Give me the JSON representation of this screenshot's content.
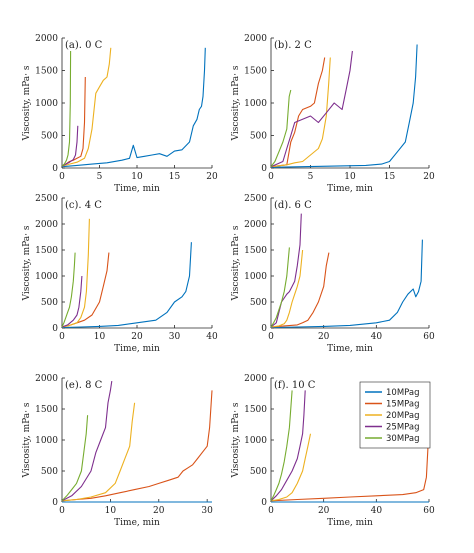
{
  "figure": {
    "legend": {
      "entries": [
        {
          "label": "10MPag",
          "color": "#0072BD"
        },
        {
          "label": "15MPag",
          "color": "#D95319"
        },
        {
          "label": "20MPag",
          "color": "#EDB120"
        },
        {
          "label": "25MPag",
          "color": "#7E2F8E"
        },
        {
          "label": "30MPag",
          "color": "#77AC30"
        }
      ]
    }
  },
  "chart_data": [
    {
      "type": "line",
      "title": "(a). 0 C",
      "xlabel": "Time, min",
      "ylabel": "Viscosity, mPa· s",
      "xlim": [
        0,
        20
      ],
      "ylim": [
        0,
        2000
      ],
      "xticks": [
        0,
        5,
        10,
        15,
        20
      ],
      "yticks": [
        0,
        500,
        1000,
        1500,
        2000
      ],
      "series": [
        {
          "name": "10MPag",
          "color": "#0072BD",
          "x": [
            0,
            2,
            4,
            6,
            8,
            9,
            9.5,
            10,
            11,
            12,
            13,
            14,
            15,
            16,
            17,
            17.5,
            18,
            18.3,
            18.6,
            18.8,
            19.0,
            19.1
          ],
          "y": [
            20,
            40,
            60,
            80,
            120,
            150,
            350,
            160,
            180,
            200,
            220,
            180,
            260,
            280,
            400,
            650,
            750,
            900,
            950,
            1100,
            1500,
            1850
          ]
        },
        {
          "name": "15MPag",
          "color": "#D95319",
          "x": [
            0,
            0.5,
            1,
            1.5,
            2,
            2.5,
            2.8,
            3.0,
            3.1
          ],
          "y": [
            30,
            60,
            100,
            120,
            150,
            180,
            300,
            700,
            1400
          ]
        },
        {
          "name": "20MPag",
          "color": "#EDB120",
          "x": [
            0,
            1,
            2,
            3,
            3.5,
            4,
            4.5,
            5,
            5.5,
            6,
            6.3,
            6.5
          ],
          "y": [
            30,
            60,
            90,
            150,
            300,
            600,
            1150,
            1250,
            1350,
            1400,
            1600,
            1850
          ]
        },
        {
          "name": "25MPag",
          "color": "#7E2F8E",
          "x": [
            0,
            0.5,
            1,
            1.5,
            1.8,
            2.0,
            2.1
          ],
          "y": [
            30,
            60,
            90,
            130,
            200,
            400,
            650
          ]
        },
        {
          "name": "30MPag",
          "color": "#77AC30",
          "x": [
            0,
            0.3,
            0.6,
            0.8,
            1.0,
            1.1,
            1.15
          ],
          "y": [
            30,
            60,
            120,
            200,
            400,
            1000,
            1800
          ]
        }
      ]
    },
    {
      "type": "line",
      "title": "(b). 2 C",
      "xlabel": "Time, min",
      "ylabel": "Viscosity, mPa· s",
      "xlim": [
        0,
        20
      ],
      "ylim": [
        0,
        2000
      ],
      "xticks": [
        0,
        5,
        10,
        15,
        20
      ],
      "yticks": [
        0,
        500,
        1000,
        1500,
        2000
      ],
      "series": [
        {
          "name": "10MPag",
          "color": "#0072BD",
          "x": [
            0,
            4,
            8,
            12,
            14,
            15,
            16,
            17,
            17.5,
            18,
            18.3,
            18.5
          ],
          "y": [
            10,
            20,
            30,
            40,
            60,
            100,
            250,
            400,
            700,
            1000,
            1400,
            1900
          ]
        },
        {
          "name": "15MPag",
          "color": "#D95319",
          "x": [
            0,
            2,
            2.5,
            3,
            3.5,
            4,
            5,
            5.5,
            6,
            6.5,
            6.8
          ],
          "y": [
            20,
            50,
            400,
            550,
            800,
            900,
            950,
            1000,
            1300,
            1500,
            1700
          ]
        },
        {
          "name": "20MPag",
          "color": "#EDB120",
          "x": [
            0,
            2,
            3,
            4,
            5,
            6,
            6.5,
            7,
            7.3,
            7.5
          ],
          "y": [
            20,
            50,
            80,
            100,
            200,
            300,
            450,
            800,
            1300,
            1700
          ]
        },
        {
          "name": "25MPag",
          "color": "#7E2F8E",
          "x": [
            0,
            1.5,
            2,
            2.5,
            3,
            4,
            5,
            6,
            7,
            8,
            9,
            9.5,
            10,
            10.3
          ],
          "y": [
            20,
            100,
            300,
            500,
            700,
            750,
            800,
            700,
            850,
            1000,
            900,
            1200,
            1500,
            1800
          ]
        },
        {
          "name": "30MPag",
          "color": "#77AC30",
          "x": [
            0,
            0.5,
            1,
            1.5,
            2,
            2.3,
            2.5
          ],
          "y": [
            20,
            100,
            250,
            400,
            600,
            1100,
            1200
          ]
        }
      ]
    },
    {
      "type": "line",
      "title": "(c). 4 C",
      "xlabel": "Time, min",
      "ylabel": "Viscosity, mPa· s",
      "xlim": [
        0,
        40
      ],
      "ylim": [
        0,
        2500
      ],
      "xticks": [
        0,
        10,
        20,
        30,
        40
      ],
      "yticks": [
        0,
        500,
        1000,
        1500,
        2000,
        2500
      ],
      "series": [
        {
          "name": "10MPag",
          "color": "#0072BD",
          "x": [
            0,
            5,
            10,
            15,
            20,
            25,
            28,
            30,
            32,
            33,
            34,
            34.5
          ],
          "y": [
            10,
            20,
            30,
            50,
            100,
            150,
            300,
            500,
            600,
            700,
            1000,
            1650
          ]
        },
        {
          "name": "15MPag",
          "color": "#D95319",
          "x": [
            0,
            2,
            4,
            6,
            8,
            10,
            11,
            12,
            12.5
          ],
          "y": [
            20,
            50,
            100,
            150,
            250,
            500,
            800,
            1100,
            1450
          ]
        },
        {
          "name": "20MPag",
          "color": "#EDB120",
          "x": [
            0,
            2,
            4,
            5,
            6,
            6.5,
            7,
            7.3
          ],
          "y": [
            20,
            50,
            100,
            200,
            400,
            700,
            1400,
            2100
          ]
        },
        {
          "name": "25MPag",
          "color": "#7E2F8E",
          "x": [
            0,
            1.5,
            3,
            4,
            4.5,
            5,
            5.3
          ],
          "y": [
            20,
            60,
            150,
            250,
            400,
            700,
            1000
          ]
        },
        {
          "name": "30MPag",
          "color": "#77AC30",
          "x": [
            0,
            0.5,
            1,
            1.5,
            2,
            2.5,
            3,
            3.3,
            3.5
          ],
          "y": [
            20,
            100,
            200,
            300,
            400,
            600,
            900,
            1200,
            1450
          ]
        }
      ]
    },
    {
      "type": "line",
      "title": "(d). 6 C",
      "xlabel": "Time, min",
      "ylabel": "Viscosity, mPa· s",
      "xlim": [
        0,
        60
      ],
      "ylim": [
        0,
        2500
      ],
      "xticks": [
        0,
        20,
        40,
        60
      ],
      "yticks": [
        0,
        500,
        1000,
        1500,
        2000,
        2500
      ],
      "series": [
        {
          "name": "10MPag",
          "color": "#0072BD",
          "x": [
            0,
            10,
            20,
            30,
            40,
            45,
            48,
            50,
            52,
            54,
            55,
            56,
            57,
            57.5
          ],
          "y": [
            10,
            20,
            30,
            50,
            100,
            150,
            300,
            500,
            650,
            750,
            600,
            700,
            900,
            1700
          ]
        },
        {
          "name": "15MPag",
          "color": "#D95319",
          "x": [
            0,
            5,
            10,
            12,
            14,
            16,
            18,
            20,
            21,
            22
          ],
          "y": [
            20,
            40,
            60,
            100,
            150,
            300,
            500,
            800,
            1200,
            1450
          ]
        },
        {
          "name": "20MPag",
          "color": "#EDB120",
          "x": [
            0,
            3,
            5,
            6,
            7,
            8,
            9,
            10,
            11,
            12
          ],
          "y": [
            20,
            40,
            80,
            150,
            300,
            500,
            650,
            800,
            1000,
            1500
          ]
        },
        {
          "name": "25MPag",
          "color": "#7E2F8E",
          "x": [
            0,
            2,
            4,
            6,
            7,
            8,
            9,
            10,
            11,
            11.5
          ],
          "y": [
            20,
            100,
            500,
            650,
            700,
            800,
            900,
            1200,
            1600,
            2200
          ]
        },
        {
          "name": "30MPag",
          "color": "#77AC30",
          "x": [
            0,
            1,
            2,
            3,
            4,
            5,
            6,
            7
          ],
          "y": [
            20,
            100,
            200,
            350,
            500,
            700,
            1000,
            1550
          ]
        }
      ]
    },
    {
      "type": "line",
      "title": "(e). 8 C",
      "xlabel": "Time, min",
      "ylabel": "Viscosity, mPa· s",
      "xlim": [
        0,
        31
      ],
      "ylim": [
        0,
        2000
      ],
      "xticks": [
        0,
        10,
        20,
        30
      ],
      "yticks": [
        0,
        500,
        1000,
        1500,
        2000
      ],
      "series": [
        {
          "name": "10MPag",
          "color": "#0072BD",
          "x": [
            0,
            31
          ],
          "y": [
            0,
            0
          ]
        },
        {
          "name": "15MPag",
          "color": "#D95319",
          "x": [
            0,
            3,
            6,
            9,
            12,
            15,
            18,
            20,
            22,
            24,
            25,
            26,
            27,
            28,
            29,
            30,
            30.5,
            31
          ],
          "y": [
            20,
            40,
            60,
            100,
            150,
            200,
            250,
            300,
            350,
            400,
            500,
            550,
            600,
            700,
            800,
            900,
            1200,
            1800
          ]
        },
        {
          "name": "20MPag",
          "color": "#EDB120",
          "x": [
            0,
            3,
            6,
            9,
            11,
            12,
            13,
            14,
            14.5,
            15
          ],
          "y": [
            20,
            40,
            80,
            150,
            300,
            500,
            700,
            900,
            1300,
            1600
          ]
        },
        {
          "name": "25MPag",
          "color": "#7E2F8E",
          "x": [
            0,
            2,
            4,
            6,
            7,
            8,
            9,
            9.5,
            10,
            10.3
          ],
          "y": [
            20,
            100,
            250,
            500,
            800,
            1000,
            1200,
            1600,
            1800,
            1950
          ]
        },
        {
          "name": "30MPag",
          "color": "#77AC30",
          "x": [
            0,
            1,
            2,
            3,
            4,
            4.5,
            5,
            5.3
          ],
          "y": [
            20,
            100,
            200,
            300,
            500,
            800,
            1100,
            1400
          ]
        }
      ]
    },
    {
      "type": "line",
      "title": "(f). 10 C",
      "xlabel": "Time, min",
      "ylabel": "Viscosity, mPa· s",
      "xlim": [
        0,
        60
      ],
      "ylim": [
        0,
        2000
      ],
      "xticks": [
        0,
        20,
        40,
        60
      ],
      "yticks": [
        0,
        500,
        1000,
        1500,
        2000
      ],
      "series": [
        {
          "name": "10MPag",
          "color": "#0072BD",
          "x": [
            0,
            60
          ],
          "y": [
            0,
            0
          ]
        },
        {
          "name": "15MPag",
          "color": "#D95319",
          "x": [
            0,
            10,
            20,
            30,
            40,
            50,
            55,
            58,
            59,
            60
          ],
          "y": [
            20,
            40,
            60,
            80,
            100,
            120,
            150,
            200,
            400,
            1200
          ]
        },
        {
          "name": "20MPag",
          "color": "#EDB120",
          "x": [
            0,
            3,
            6,
            8,
            10,
            12,
            13,
            14,
            15
          ],
          "y": [
            20,
            40,
            80,
            150,
            300,
            500,
            700,
            900,
            1100
          ]
        },
        {
          "name": "25MPag",
          "color": "#7E2F8E",
          "x": [
            0,
            2,
            4,
            6,
            8,
            10,
            11,
            12,
            12.5,
            13
          ],
          "y": [
            20,
            100,
            200,
            350,
            500,
            700,
            900,
            1100,
            1400,
            1800
          ]
        },
        {
          "name": "30MPag",
          "color": "#77AC30",
          "x": [
            0,
            1,
            2,
            3,
            4,
            5,
            6,
            7,
            8
          ],
          "y": [
            20,
            100,
            200,
            300,
            450,
            650,
            900,
            1200,
            1800
          ]
        }
      ]
    }
  ]
}
